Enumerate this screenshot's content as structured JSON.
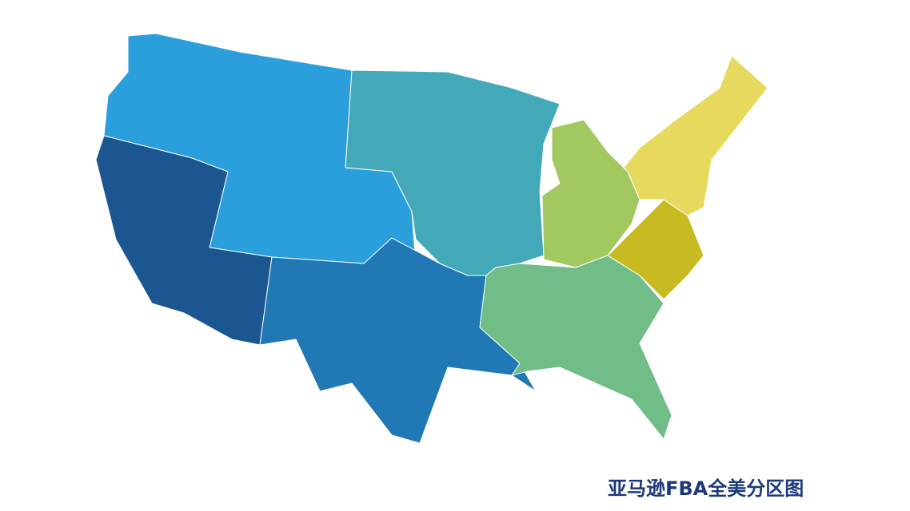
{
  "map": {
    "title": "亚马逊FBA全美分区图",
    "zones": [
      {
        "id": "northwest",
        "color": "#2a9fdb"
      },
      {
        "id": "west",
        "color": "#1b5690"
      },
      {
        "id": "south-central",
        "color": "#2078b4"
      },
      {
        "id": "midwest",
        "color": "#43a9b8"
      },
      {
        "id": "great-lakes",
        "color": "#a1c960"
      },
      {
        "id": "southeast",
        "color": "#70bd88"
      },
      {
        "id": "mid-atlantic",
        "color": "#c8bb22"
      },
      {
        "id": "northeast",
        "color": "#e6d95e"
      }
    ]
  }
}
